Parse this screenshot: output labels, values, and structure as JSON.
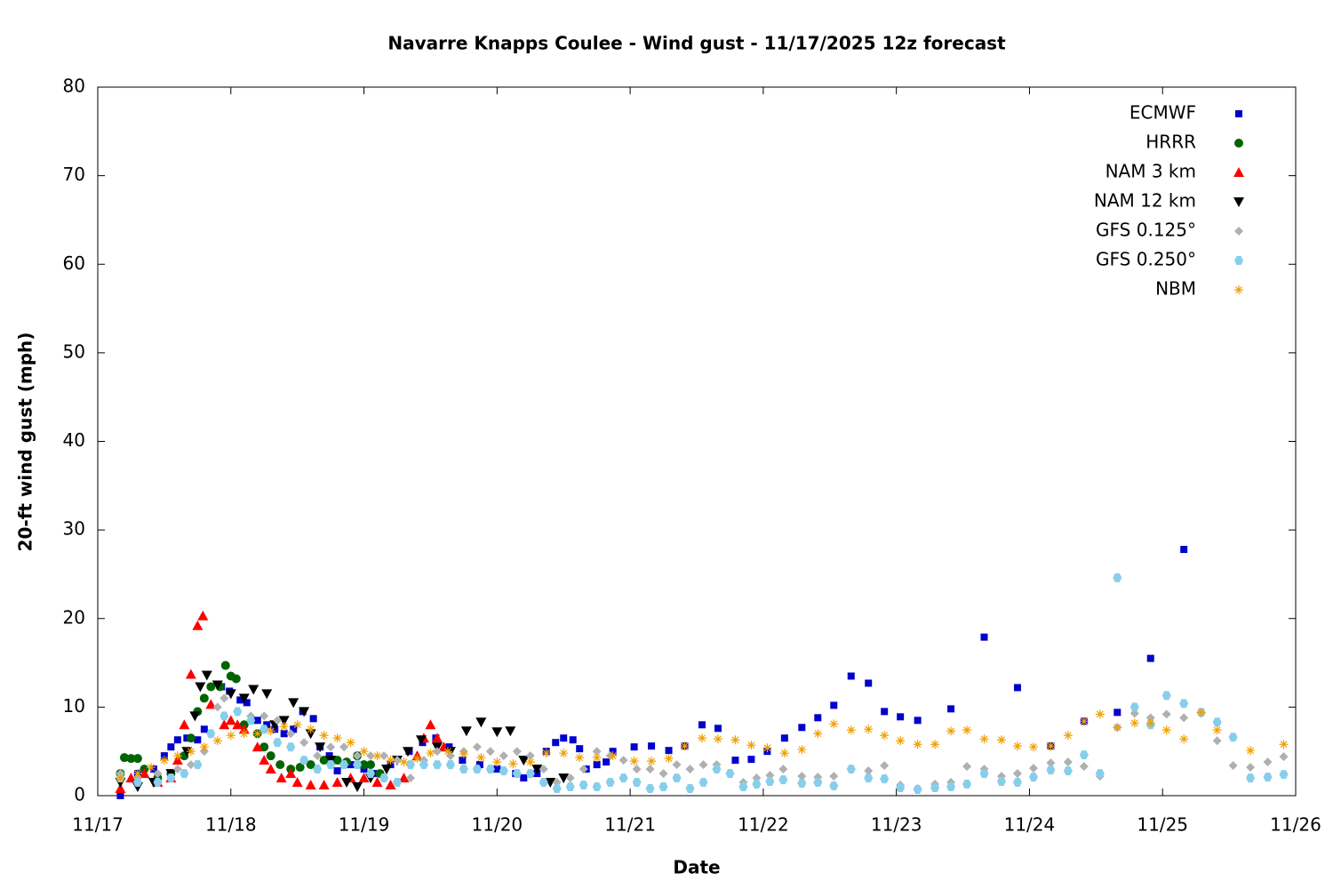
{
  "chart_data": {
    "type": "scatter",
    "title": "Navarre Knapps Coulee - Wind gust - 11/17/2025 12z forecast",
    "x_label": "Date",
    "y_label": "20-ft wind gust (mph)",
    "xlim": [
      0,
      9
    ],
    "ylim": [
      0,
      80
    ],
    "xticks": [
      {
        "value": 0,
        "label": "11/17"
      },
      {
        "value": 1,
        "label": "11/18"
      },
      {
        "value": 2,
        "label": "11/19"
      },
      {
        "value": 3,
        "label": "11/20"
      },
      {
        "value": 4,
        "label": "11/21"
      },
      {
        "value": 5,
        "label": "11/22"
      },
      {
        "value": 6,
        "label": "11/23"
      },
      {
        "value": 7,
        "label": "11/24"
      },
      {
        "value": 8,
        "label": "11/25"
      },
      {
        "value": 9,
        "label": "11/26"
      }
    ],
    "yticks": [
      0,
      10,
      20,
      30,
      40,
      50,
      60,
      70,
      80
    ],
    "legend_position": "top-right",
    "series": [
      {
        "name": "ECMWF",
        "color": "#0000cc",
        "marker": "square",
        "x": [
          0.17,
          0.3,
          0.42,
          0.5,
          0.55,
          0.6,
          0.67,
          0.75,
          0.8,
          0.93,
          0.99,
          1.07,
          1.12,
          1.2,
          1.27,
          1.33,
          1.4,
          1.47,
          1.54,
          1.62,
          1.67,
          1.74,
          1.8,
          1.9,
          2.0,
          2.07,
          2.2,
          2.34,
          2.44,
          2.54,
          2.64,
          2.74,
          2.87,
          3.0,
          3.14,
          3.2,
          3.3,
          3.37,
          3.44,
          3.5,
          3.57,
          3.62,
          3.67,
          3.75,
          3.82,
          3.87,
          4.03,
          4.16,
          4.29,
          4.41,
          4.54,
          4.66,
          4.79,
          4.91,
          5.03,
          5.16,
          5.29,
          5.41,
          5.53,
          5.66,
          5.79,
          5.91,
          6.03,
          6.16,
          6.41,
          6.66,
          6.91,
          7.16,
          7.41,
          7.66,
          7.91,
          8.16
        ],
        "values": [
          0,
          2.5,
          3,
          4.5,
          5.5,
          6.3,
          6.5,
          6.3,
          7.5,
          12.3,
          11.8,
          10.8,
          10.5,
          8.5,
          8,
          7.5,
          7,
          7.5,
          9.5,
          8.7,
          5.5,
          4.5,
          2.8,
          3.5,
          3,
          2.5,
          3.5,
          5,
          6,
          6.5,
          5.5,
          4,
          3.5,
          3,
          2.5,
          2,
          2.5,
          5,
          6,
          6.5,
          6.3,
          5.3,
          3,
          3.5,
          3.8,
          5,
          5.5,
          5.6,
          5.1,
          5.6,
          8,
          7.6,
          4,
          4.1,
          5,
          6.5,
          7.7,
          8.8,
          10.2,
          13.5,
          12.7,
          9.5,
          8.9,
          8.5,
          9.8,
          17.9,
          12.2,
          5.6,
          8.4,
          9.4,
          15.5,
          27.8
        ]
      },
      {
        "name": "HRRR",
        "color": "#006400",
        "marker": "circle",
        "x": [
          0.17,
          0.2,
          0.25,
          0.3,
          0.35,
          0.45,
          0.55,
          0.65,
          0.7,
          0.75,
          0.8,
          0.85,
          0.92,
          0.96,
          1.0,
          1.04,
          1.1,
          1.2,
          1.25,
          1.3,
          1.37,
          1.45,
          1.52,
          1.6,
          1.7,
          1.8,
          1.87,
          1.95,
          2.0,
          2.05,
          2.12
        ],
        "values": [
          2.5,
          4.3,
          4.2,
          4.2,
          3,
          2,
          2.5,
          4.5,
          6.5,
          9.5,
          11,
          12.3,
          12.3,
          14.7,
          13.5,
          13.2,
          8,
          7,
          5.5,
          4.5,
          3.5,
          3,
          3.2,
          3.5,
          4,
          4,
          3.8,
          4.5,
          3.5,
          3.5,
          2.5
        ]
      },
      {
        "name": "NAM 3 km",
        "color": "#ff0000",
        "marker": "triangle-up",
        "x": [
          0.17,
          0.25,
          0.35,
          0.45,
          0.55,
          0.6,
          0.65,
          0.7,
          0.75,
          0.79,
          0.85,
          0.95,
          1.0,
          1.05,
          1.1,
          1.2,
          1.25,
          1.3,
          1.38,
          1.45,
          1.5,
          1.6,
          1.7,
          1.8,
          1.9,
          2.0,
          2.1,
          2.2,
          2.3,
          2.4,
          2.45,
          2.5,
          2.55,
          2.6
        ],
        "values": [
          0.8,
          2,
          2.5,
          1.5,
          2,
          4,
          8,
          13.7,
          19.2,
          20.3,
          10.3,
          8,
          8.5,
          8,
          7.5,
          5.5,
          4,
          3,
          2,
          2.5,
          1.5,
          1.2,
          1.2,
          1.5,
          2,
          2,
          1.5,
          1.2,
          2,
          4.5,
          6.5,
          8,
          6.5,
          5.5
        ]
      },
      {
        "name": "NAM 12 km",
        "color": "#000000",
        "marker": "triangle-down",
        "x": [
          0.17,
          0.3,
          0.42,
          0.55,
          0.67,
          0.73,
          0.77,
          0.82,
          0.9,
          1.0,
          1.1,
          1.17,
          1.27,
          1.33,
          1.4,
          1.47,
          1.55,
          1.6,
          1.67,
          1.75,
          1.87,
          1.95,
          2.05,
          2.17,
          2.25,
          2.33,
          2.43,
          2.55,
          2.65,
          2.77,
          2.88,
          3.0,
          3.1,
          3.2,
          3.3,
          3.4,
          3.5
        ],
        "values": [
          1.5,
          1,
          1.5,
          2.5,
          5,
          9,
          12.3,
          13.6,
          12.5,
          11.5,
          11,
          12,
          11.5,
          8,
          8.5,
          10.5,
          9.5,
          7,
          5.5,
          4,
          1.5,
          1,
          2,
          3,
          4,
          5,
          6.3,
          5.5,
          5,
          7.3,
          8.3,
          7.2,
          7.3,
          4,
          3,
          1.5,
          2
        ]
      },
      {
        "name": "GFS 0.125°",
        "color": "#b0b0b0",
        "marker": "diamond",
        "x": [
          0.17,
          0.3,
          0.45,
          0.6,
          0.7,
          0.8,
          0.9,
          0.95,
          1.05,
          1.15,
          1.25,
          1.35,
          1.45,
          1.55,
          1.65,
          1.75,
          1.85,
          1.95,
          2.05,
          2.15,
          2.25,
          2.35,
          2.45,
          2.55,
          2.65,
          2.75,
          2.85,
          2.95,
          3.05,
          3.15,
          3.25,
          3.35,
          3.45,
          3.55,
          3.65,
          3.75,
          3.85,
          3.95,
          4.05,
          4.15,
          4.25,
          4.35,
          4.45,
          4.55,
          4.65,
          4.75,
          4.85,
          4.95,
          5.05,
          5.15,
          5.29,
          5.41,
          5.53,
          5.66,
          5.79,
          5.91,
          6.03,
          6.16,
          6.29,
          6.41,
          6.53,
          6.66,
          6.79,
          6.91,
          7.03,
          7.16,
          7.29,
          7.41,
          7.53,
          7.66,
          7.79,
          7.91,
          8.03,
          8.16,
          8.29,
          8.41,
          8.53,
          8.66,
          8.79,
          8.91
        ],
        "values": [
          2.5,
          2,
          2.5,
          3,
          3.5,
          5,
          10,
          11,
          9.5,
          9,
          9,
          8.5,
          7,
          6,
          4.5,
          5.5,
          5.5,
          4.5,
          4.5,
          4.5,
          4,
          2,
          4,
          5,
          4.5,
          5,
          5.5,
          5,
          4.5,
          5,
          4.5,
          3,
          1.5,
          2,
          3,
          5,
          4.5,
          4,
          3,
          3,
          2.5,
          3.5,
          3,
          3.5,
          3.5,
          2.5,
          1.5,
          2,
          2.3,
          3,
          2.2,
          2.1,
          2.2,
          3,
          2.8,
          3.4,
          1.2,
          0.8,
          1.3,
          1.5,
          3.3,
          3,
          2.2,
          2.5,
          3.1,
          3.7,
          3.8,
          3.3,
          2.2,
          7.7,
          9.3,
          8.8,
          9.2,
          8.8,
          9.3,
          6.2,
          3.4,
          3.2,
          3.8,
          4.4
        ]
      },
      {
        "name": "GFS 0.250°",
        "color": "#87ceeb",
        "marker": "hexagon",
        "x": [
          0.17,
          0.3,
          0.45,
          0.55,
          0.65,
          0.75,
          0.85,
          0.95,
          1.05,
          1.15,
          1.25,
          1.35,
          1.45,
          1.55,
          1.65,
          1.75,
          1.85,
          1.95,
          2.05,
          2.15,
          2.25,
          2.35,
          2.45,
          2.55,
          2.65,
          2.75,
          2.85,
          2.95,
          3.05,
          3.15,
          3.25,
          3.35,
          3.45,
          3.55,
          3.65,
          3.75,
          3.85,
          3.95,
          4.05,
          4.15,
          4.25,
          4.35,
          4.45,
          4.55,
          4.65,
          4.75,
          4.85,
          4.95,
          5.05,
          5.15,
          5.29,
          5.41,
          5.53,
          5.66,
          5.79,
          5.91,
          6.03,
          6.16,
          6.29,
          6.41,
          6.53,
          6.66,
          6.79,
          6.91,
          7.03,
          7.16,
          7.29,
          7.41,
          7.53,
          7.66,
          7.79,
          7.91,
          8.03,
          8.16,
          8.29,
          8.41,
          8.53,
          8.66,
          8.79,
          8.91
        ],
        "values": [
          2,
          1.5,
          1.5,
          2,
          2.5,
          3.5,
          7,
          9,
          9.5,
          8.5,
          7.5,
          6,
          5.5,
          4,
          3,
          3.5,
          3.5,
          3.5,
          2.5,
          2,
          1.5,
          3.5,
          3.5,
          3.5,
          3.5,
          3,
          3,
          3,
          2.8,
          2.5,
          2.5,
          1.5,
          0.8,
          1,
          1.2,
          1,
          1.5,
          2,
          1.5,
          0.8,
          1,
          2,
          0.8,
          1.5,
          3,
          2.5,
          1,
          1.3,
          1.6,
          1.8,
          1.4,
          1.5,
          1.1,
          3,
          2,
          1.9,
          0.9,
          0.7,
          0.9,
          1,
          1.3,
          2.5,
          1.6,
          1.5,
          2.1,
          2.9,
          2.8,
          4.6,
          2.5,
          24.6,
          10,
          8,
          11.3,
          10.4,
          9.4,
          8.3,
          6.6,
          2,
          2.1,
          2.4
        ]
      },
      {
        "name": "NBM",
        "color": "#f0a000",
        "marker": "star",
        "x": [
          0.17,
          0.3,
          0.4,
          0.5,
          0.6,
          0.7,
          0.8,
          0.9,
          1.0,
          1.1,
          1.2,
          1.3,
          1.4,
          1.5,
          1.6,
          1.7,
          1.8,
          1.9,
          2.0,
          2.1,
          2.2,
          2.3,
          2.4,
          2.5,
          2.63,
          2.75,
          2.88,
          3.0,
          3.12,
          3.25,
          3.37,
          3.5,
          3.62,
          3.75,
          3.87,
          4.03,
          4.16,
          4.29,
          4.41,
          4.54,
          4.66,
          4.79,
          4.91,
          5.03,
          5.16,
          5.29,
          5.41,
          5.53,
          5.66,
          5.79,
          5.91,
          6.03,
          6.16,
          6.29,
          6.41,
          6.53,
          6.66,
          6.79,
          6.91,
          7.03,
          7.16,
          7.29,
          7.41,
          7.53,
          7.66,
          7.79,
          7.91,
          8.03,
          8.16,
          8.29,
          8.41,
          8.66,
          8.91
        ],
        "values": [
          2,
          2.5,
          3.2,
          4,
          4.5,
          5,
          5.5,
          6.2,
          6.8,
          7,
          7,
          7.3,
          7.8,
          8,
          7.5,
          6.8,
          6.5,
          6,
          5,
          4.5,
          4,
          3.8,
          4.2,
          4.8,
          5,
          4.7,
          4.3,
          3.8,
          3.6,
          3.8,
          4.8,
          4.8,
          4.3,
          4.3,
          4.5,
          3.9,
          3.9,
          4.2,
          5.6,
          6.5,
          6.4,
          6.3,
          5.7,
          5.4,
          4.8,
          5.2,
          7,
          8.1,
          7.4,
          7.5,
          6.8,
          6.2,
          5.8,
          5.8,
          7.3,
          7.4,
          6.4,
          6.3,
          5.6,
          5.5,
          5.6,
          6.8,
          8.4,
          9.2,
          7.7,
          8.2,
          8.2,
          7.4,
          6.4,
          9.4,
          7.4,
          5.1,
          5.8
        ]
      }
    ]
  }
}
